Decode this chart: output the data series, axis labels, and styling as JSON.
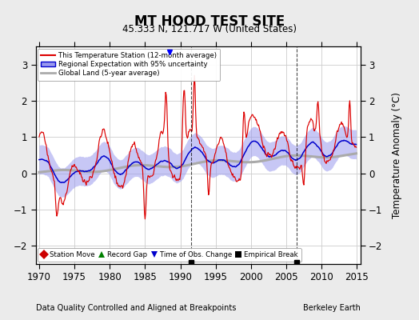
{
  "title": "MT HOOD TEST SITE",
  "subtitle": "45.333 N, 121.717 W (United States)",
  "xlabel_left": "Data Quality Controlled and Aligned at Breakpoints",
  "xlabel_right": "Berkeley Earth",
  "ylabel": "Temperature Anomaly (°C)",
  "xlim": [
    1969.5,
    2015.5
  ],
  "ylim": [
    -2.5,
    3.5
  ],
  "yticks": [
    -2,
    -1,
    0,
    1,
    2,
    3
  ],
  "xticks": [
    1970,
    1975,
    1980,
    1985,
    1990,
    1995,
    2000,
    2005,
    2010,
    2015
  ],
  "background_color": "#ebebeb",
  "plot_bg_color": "#ffffff",
  "red_line_color": "#dd0000",
  "blue_line_color": "#0000cc",
  "blue_fill_color": "#9999ee",
  "gray_line_color": "#aaaaaa",
  "grid_color": "#cccccc",
  "empirical_break_years": [
    1991.5,
    2006.5
  ],
  "time_obs_change_years": [
    1988.5
  ],
  "legend_entries": [
    "This Temperature Station (12-month average)",
    "Regional Expectation with 95% uncertainty",
    "Global Land (5-year average)"
  ],
  "legend_bottom_entries": [
    "Station Move",
    "Record Gap",
    "Time of Obs. Change",
    "Empirical Break"
  ],
  "seed": 42
}
